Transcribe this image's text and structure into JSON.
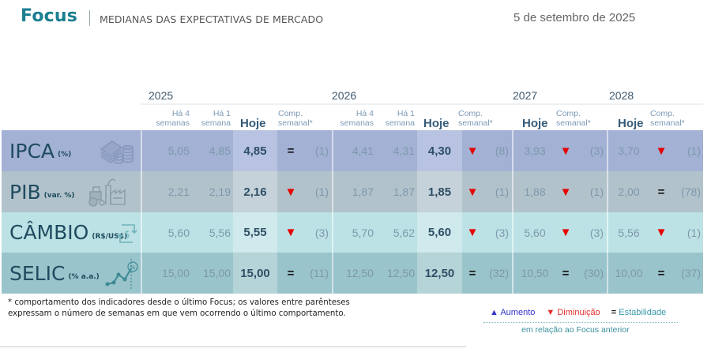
{
  "header": {
    "brand": "Focus",
    "subtitle": "MEDIANAS DAS EXPECTATIVAS DE MERCADO",
    "date": "5 de setembro de 2025"
  },
  "years": [
    "2025",
    "2026",
    "2027",
    "2028"
  ],
  "column_headers": {
    "ha4": [
      "Há 4",
      "semanas"
    ],
    "ha1": [
      "Há 1",
      "semana"
    ],
    "hoje": "Hoje",
    "comp": [
      "Comp.",
      "semanal*"
    ]
  },
  "indicators": [
    {
      "name": "IPCA",
      "unit": "(%)",
      "icon": "money-coins-icon",
      "y2025": {
        "ha4": "5,05",
        "ha1": "4,85",
        "hoje": "4,85",
        "trend": "=",
        "trend_type": "stable",
        "weeks": "(1)"
      },
      "y2026": {
        "ha4": "4,41",
        "ha1": "4,31",
        "hoje": "4,30",
        "trend": "▼",
        "trend_type": "down",
        "weeks": "(8)"
      },
      "y2027": {
        "hoje": "3,93",
        "trend": "▼",
        "trend_type": "down",
        "weeks": "(3)"
      },
      "y2028": {
        "hoje": "3,70",
        "trend": "▼",
        "trend_type": "down",
        "weeks": "(1)"
      }
    },
    {
      "name": "PIB",
      "unit": "(var. %)",
      "icon": "tractor-factory-icon",
      "y2025": {
        "ha4": "2,21",
        "ha1": "2,19",
        "hoje": "2,16",
        "trend": "▼",
        "trend_type": "down",
        "weeks": "(1)"
      },
      "y2026": {
        "ha4": "1,87",
        "ha1": "1,87",
        "hoje": "1,85",
        "trend": "▼",
        "trend_type": "down",
        "weeks": "(1)"
      },
      "y2027": {
        "hoje": "1,88",
        "trend": "▼",
        "trend_type": "down",
        "weeks": "(1)"
      },
      "y2028": {
        "hoje": "2,00",
        "trend": "=",
        "trend_type": "stable",
        "weeks": "(78)"
      }
    },
    {
      "name": "CÂMBIO",
      "unit": "(R$/US$)",
      "icon": "currency-exchange-icon",
      "y2025": {
        "ha4": "5,60",
        "ha1": "5,56",
        "hoje": "5,55",
        "trend": "▼",
        "trend_type": "down",
        "weeks": "(3)"
      },
      "y2026": {
        "ha4": "5,70",
        "ha1": "5,62",
        "hoje": "5,60",
        "trend": "▼",
        "trend_type": "down",
        "weeks": "(3)"
      },
      "y2027": {
        "hoje": "5,60",
        "trend": "▼",
        "trend_type": "down",
        "weeks": "(3)"
      },
      "y2028": {
        "hoje": "5,56",
        "trend": "▼",
        "trend_type": "down",
        "weeks": "(1)"
      }
    },
    {
      "name": "SELIC",
      "unit": "(% a.a.)",
      "icon": "rate-chart-icon",
      "y2025": {
        "ha4": "15,00",
        "ha1": "15,00",
        "hoje": "15,00",
        "trend": "=",
        "trend_type": "stable",
        "weeks": "(11)"
      },
      "y2026": {
        "ha4": "12,50",
        "ha1": "12,50",
        "hoje": "12,50",
        "trend": "=",
        "trend_type": "stable",
        "weeks": "(32)"
      },
      "y2027": {
        "hoje": "10,50",
        "trend": "=",
        "trend_type": "stable",
        "weeks": "(30)"
      },
      "y2028": {
        "hoje": "10,00",
        "trend": "=",
        "trend_type": "stable",
        "weeks": "(37)"
      }
    }
  ],
  "row_colors": [
    {
      "base": "#a2b1d4",
      "hl": "#b7c3e0"
    },
    {
      "base": "#b2c2cb",
      "hl": "#c5d2d9"
    },
    {
      "base": "#bde2e5",
      "hl": "#cfe9ec"
    },
    {
      "base": "#9ac4cb",
      "hl": "#b4d4d8"
    }
  ],
  "footnote": "* comportamento dos indicadores desde o último Focus; os valores entre parênteses expressam o número de semanas em que vem ocorrendo o último comportamento.",
  "legend": {
    "up_symbol": "▲",
    "up_label": "Aumento",
    "down_symbol": "▼",
    "down_label": "Diminuição",
    "stable_symbol": "=",
    "stable_label": "Estabilidade",
    "note": "em relação ao Focus anterior"
  }
}
